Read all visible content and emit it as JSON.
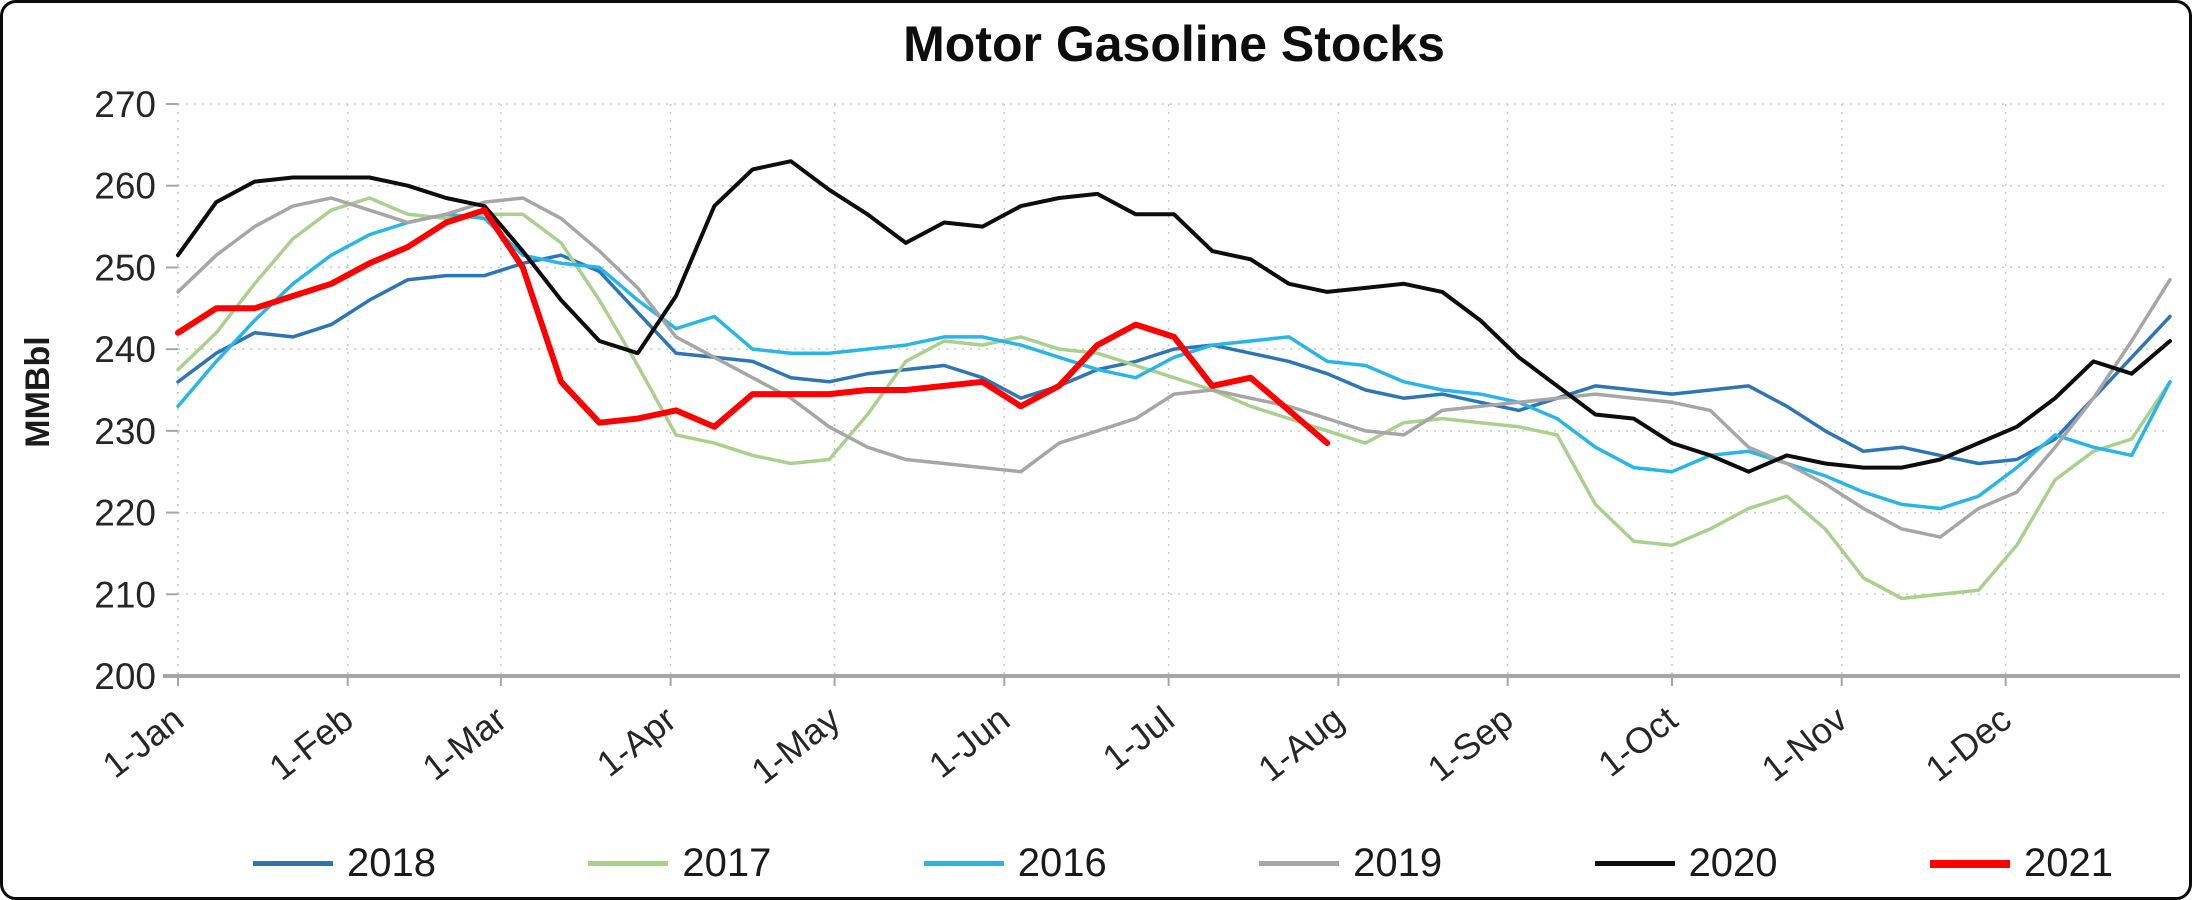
{
  "chart_data": {
    "type": "line",
    "title": "Motor Gasoline Stocks",
    "ylabel": "MMBbl",
    "ylim": [
      200,
      270
    ],
    "ytick_step": 10,
    "grid": true,
    "legend_position": "bottom",
    "x_unit": "weekly",
    "x_weeks_total": 52,
    "x_tick_labels": [
      "1-Jan",
      "1-Feb",
      "1-Mar",
      "1-Apr",
      "1-May",
      "1-Jun",
      "1-Jul",
      "1-Aug",
      "1-Sep",
      "1-Oct",
      "1-Nov",
      "1-Dec"
    ],
    "x_tick_weeks": [
      0,
      4.43,
      8.43,
      12.86,
      17.14,
      21.57,
      25.86,
      30.29,
      34.71,
      39.0,
      43.43,
      47.71
    ],
    "series": [
      {
        "name": "2018",
        "color": "#2E75B6",
        "line_width": 3.5,
        "values": [
          236,
          239.5,
          242,
          241.5,
          243,
          246,
          248.5,
          249,
          249,
          250.5,
          251.5,
          249.5,
          244.5,
          239.5,
          239,
          238.5,
          236.5,
          236,
          237,
          237.5,
          238,
          236.5,
          234,
          235.5,
          237.5,
          238.5,
          240,
          240.5,
          239.5,
          238.5,
          237,
          235,
          234,
          234.5,
          233.5,
          232.5,
          234,
          235.5,
          235,
          234.5,
          235,
          235.5,
          233,
          230,
          227.5,
          228,
          227,
          226,
          226.5,
          229,
          234,
          239,
          244
        ]
      },
      {
        "name": "2017",
        "color": "#A9D18E",
        "line_width": 3.5,
        "values": [
          237.5,
          242,
          248,
          253.5,
          257,
          258.5,
          256.5,
          256,
          256.5,
          256.5,
          253,
          246,
          238,
          229.5,
          228.5,
          227,
          226,
          226.5,
          232,
          238.5,
          241,
          240.5,
          241.5,
          240,
          239.5,
          238,
          236.5,
          235,
          233,
          231.5,
          230,
          228.5,
          231,
          231.5,
          231,
          230.5,
          229.5,
          221,
          216.5,
          216,
          218,
          220.5,
          222,
          218,
          212,
          209.5,
          210,
          210.5,
          216,
          224,
          227.5,
          229,
          236
        ]
      },
      {
        "name": "2016",
        "color": "#2AB5E8",
        "line_width": 3.5,
        "values": [
          233,
          238.5,
          243.5,
          248,
          251.5,
          254,
          255.5,
          256.5,
          256,
          251.5,
          250.5,
          250,
          246,
          242.5,
          244,
          240,
          239.5,
          239.5,
          240,
          240.5,
          241.5,
          241.5,
          240.5,
          239,
          237.5,
          236.5,
          239,
          240.5,
          241,
          241.5,
          238.5,
          238,
          236,
          235,
          234.5,
          233.5,
          231.5,
          228,
          225.5,
          225,
          227,
          227.5,
          226,
          224.5,
          222.5,
          221,
          220.5,
          222,
          225.5,
          229.5,
          228,
          227,
          236
        ]
      },
      {
        "name": "2019",
        "color": "#A6A6A6",
        "line_width": 3.5,
        "values": [
          247,
          251.5,
          255,
          257.5,
          258.5,
          257,
          255.5,
          256.5,
          258,
          258.5,
          256,
          252,
          247.5,
          241.5,
          239,
          236.5,
          234,
          230.5,
          228,
          226.5,
          226,
          225.5,
          225,
          228.5,
          230,
          231.5,
          234.5,
          235,
          234,
          233,
          231.5,
          230,
          229.5,
          232.5,
          233,
          233.5,
          234,
          234.5,
          234,
          233.5,
          232.5,
          228,
          226,
          223.5,
          220.5,
          218,
          217,
          220.5,
          222.5,
          228,
          234,
          241,
          248.5
        ]
      },
      {
        "name": "2020",
        "color": "#0D0D0D",
        "line_width": 4,
        "values": [
          251.5,
          258,
          260.5,
          261,
          261,
          261,
          260,
          258.5,
          257.5,
          252,
          246,
          241,
          239.5,
          246.5,
          257.5,
          262,
          263,
          259.5,
          256.5,
          253,
          255.5,
          255,
          257.5,
          258.5,
          259,
          256.5,
          256.5,
          252,
          251,
          248,
          247,
          247.5,
          248,
          247,
          243.5,
          239,
          235.5,
          232,
          231.5,
          228.5,
          227,
          225,
          227,
          226,
          225.5,
          225.5,
          226.5,
          228.5,
          230.5,
          234,
          238.5,
          237,
          241
        ]
      },
      {
        "name": "2021",
        "color": "#FF0000",
        "line_width": 6,
        "values": [
          242,
          245,
          245,
          246.5,
          248,
          250.5,
          252.5,
          255.5,
          257,
          250,
          236,
          231,
          231.5,
          232.5,
          230.5,
          234.5,
          234.5,
          234.5,
          235,
          235,
          235.5,
          236,
          233,
          235.5,
          240.5,
          243,
          241.5,
          235.5,
          236.5,
          232.5,
          228.5
        ]
      }
    ]
  }
}
